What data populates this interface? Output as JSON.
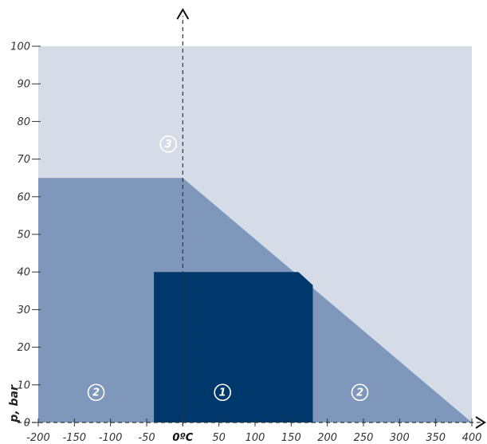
{
  "chart_data": {
    "type": "area",
    "title": "",
    "xlabel": "",
    "ylabel": "p, bar",
    "xlim": [
      -200,
      400
    ],
    "ylim": [
      0,
      100
    ],
    "x_ticks": [
      {
        "value": -200,
        "label": "-200"
      },
      {
        "value": -150,
        "label": "-150"
      },
      {
        "value": -100,
        "label": "-100"
      },
      {
        "value": -50,
        "label": "-50"
      },
      {
        "value": 0,
        "label": "0ºC"
      },
      {
        "value": 50,
        "label": "50"
      },
      {
        "value": 100,
        "label": "100"
      },
      {
        "value": 150,
        "label": "150"
      },
      {
        "value": 200,
        "label": "200"
      },
      {
        "value": 250,
        "label": "250"
      },
      {
        "value": 300,
        "label": "300"
      },
      {
        "value": 350,
        "label": "350"
      },
      {
        "value": 400,
        "label": "400"
      }
    ],
    "y_ticks": [
      {
        "value": 0,
        "label": "0"
      },
      {
        "value": 10,
        "label": "10"
      },
      {
        "value": 20,
        "label": "20"
      },
      {
        "value": 30,
        "label": "30"
      },
      {
        "value": 40,
        "label": "40"
      },
      {
        "value": 50,
        "label": "50"
      },
      {
        "value": 60,
        "label": "60"
      },
      {
        "value": 70,
        "label": "70"
      },
      {
        "value": 80,
        "label": "80"
      },
      {
        "value": 90,
        "label": "90"
      },
      {
        "value": 100,
        "label": "100"
      }
    ],
    "regions": [
      {
        "id": "zone-3",
        "label": "3",
        "color": "#d5dce7",
        "points": [
          [
            -200,
            0
          ],
          [
            400,
            0
          ],
          [
            400,
            100
          ],
          [
            -200,
            100
          ]
        ],
        "label_at": [
          -20,
          74
        ]
      },
      {
        "id": "zone-2",
        "label": "2",
        "color": "#7e97ba",
        "points": [
          [
            -200,
            0
          ],
          [
            400,
            0
          ],
          [
            0,
            65
          ],
          [
            -200,
            65
          ]
        ],
        "label_at": [
          -120,
          8
        ]
      },
      {
        "id": "zone-1",
        "label": "1",
        "color": "#00386b",
        "points": [
          [
            -40,
            0
          ],
          [
            180,
            0
          ],
          [
            180,
            36.5
          ],
          [
            160,
            40
          ],
          [
            -40,
            40
          ]
        ],
        "label_at": [
          55,
          8
        ]
      }
    ],
    "extra_labels": [
      {
        "id": "zone-2-right",
        "label": "2",
        "at": [
          245,
          8
        ]
      }
    ],
    "grid": false,
    "legend": "none"
  },
  "colors": {
    "axis": "#333333",
    "label_text": "#ffffff"
  }
}
